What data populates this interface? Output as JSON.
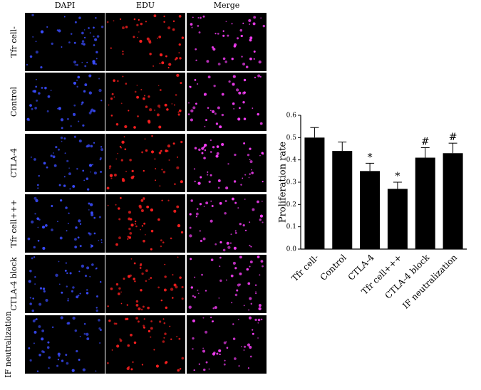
{
  "panel": {
    "columns": [
      "DAPI",
      "EDU",
      "Merge"
    ],
    "rows": [
      "Tfr cell-",
      "Control",
      "CTLA-4",
      "Tfr cell+++",
      "CTLA-4 block",
      "IF neutralization"
    ]
  },
  "chart_data": {
    "type": "bar",
    "ylabel": "Proliferation rate",
    "categories": [
      "Tfr cell-",
      "Control",
      "CTLA-4",
      "Tfr cell+++",
      "CTLA-4 block",
      "IF neutralization"
    ],
    "values": [
      0.5,
      0.44,
      0.35,
      0.27,
      0.41,
      0.43
    ],
    "errors": [
      0.045,
      0.04,
      0.035,
      0.03,
      0.045,
      0.045
    ],
    "annotations": [
      null,
      null,
      "*",
      "*",
      "#",
      "#"
    ],
    "color": "#000000",
    "ylim": [
      0,
      0.6
    ],
    "yticks": [
      {
        "value": 0,
        "label": "0.0"
      },
      0.1,
      0.2,
      0.3,
      0.4,
      0.5,
      0.6
    ]
  }
}
